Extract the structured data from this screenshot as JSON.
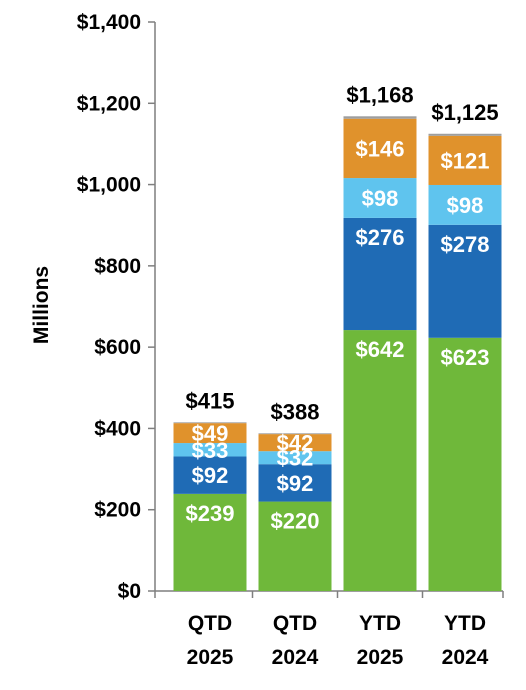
{
  "chart_data": {
    "type": "bar",
    "stacked": true,
    "title": "",
    "xlabel": "",
    "ylabel": "Millions",
    "ylim": [
      0,
      1400
    ],
    "yticks": [
      0,
      200,
      400,
      600,
      800,
      1000,
      1200,
      1400
    ],
    "ytick_labels": [
      "$0",
      "$200",
      "$400",
      "$600",
      "$800",
      "$1,000",
      "$1,200",
      "$1,400"
    ],
    "grid": false,
    "legend": "none",
    "categories": [
      [
        "QTD",
        "2025"
      ],
      [
        "QTD",
        "2024"
      ],
      [
        "YTD",
        "2025"
      ],
      [
        "YTD",
        "2024"
      ]
    ],
    "series": [
      {
        "color": "#6fb83a",
        "values": [
          239,
          220,
          642,
          623
        ],
        "labels": [
          "$239",
          "$220",
          "$642",
          "$623"
        ]
      },
      {
        "color": "#1f6bb5",
        "values": [
          92,
          92,
          276,
          278
        ],
        "labels": [
          "$92",
          "$92",
          "$276",
          "$278"
        ]
      },
      {
        "color": "#5fc4ee",
        "values": [
          33,
          32,
          98,
          98
        ],
        "labels": [
          "$33",
          "$32",
          "$98",
          "$98"
        ]
      },
      {
        "color": "#e0922c",
        "values": [
          49,
          42,
          146,
          121
        ],
        "labels": [
          "$49",
          "$42",
          "$146",
          "$121"
        ]
      },
      {
        "color": "#9e9e9e",
        "values": [
          2,
          2,
          6,
          5
        ]
      }
    ],
    "totals": [
      415,
      388,
      1168,
      1125
    ],
    "total_labels": [
      "$415",
      "$388",
      "$1,168",
      "$1,125"
    ]
  }
}
